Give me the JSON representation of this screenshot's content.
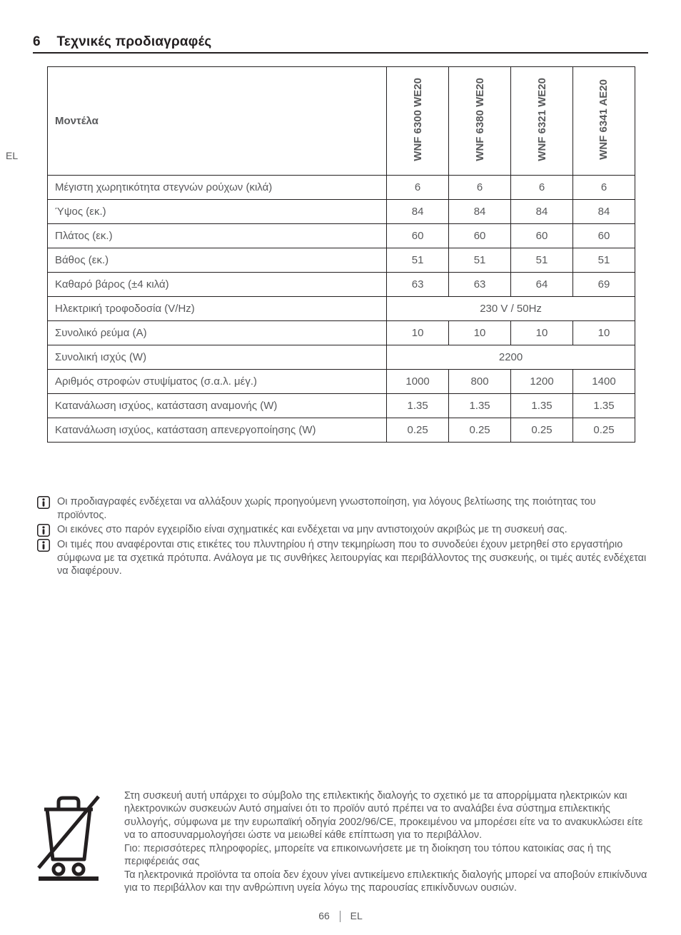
{
  "heading": {
    "number": "6",
    "title": "Τεχνικές προδιαγραφές"
  },
  "lang_side": "EL",
  "table": {
    "row_header_label": "Μοντέλα",
    "models": [
      "WNF 6300 WE20",
      "WNF 6380 WE20",
      "WNF 6321 WE20",
      "WNF 6341 AE20"
    ],
    "rows": [
      {
        "label": "Μέγιστη χωρητικότητα στεγνών ρούχων (κιλά)",
        "values": [
          "6",
          "6",
          "6",
          "6"
        ]
      },
      {
        "label": "Ύψος (εκ.)",
        "values": [
          "84",
          "84",
          "84",
          "84"
        ]
      },
      {
        "label": "Πλάτος (εκ.)",
        "values": [
          "60",
          "60",
          "60",
          "60"
        ]
      },
      {
        "label": "Βάθος (εκ.)",
        "values": [
          "51",
          "51",
          "51",
          "51"
        ]
      },
      {
        "label": "Καθαρό βάρος (±4 κιλά)",
        "values": [
          "63",
          "63",
          "64",
          "69"
        ]
      },
      {
        "label": "Ηλεκτρική τροφοδοσία (V/Hz)",
        "merged": "230 V / 50Hz"
      },
      {
        "label": "Συνολικό ρεύμα (A)",
        "values": [
          "10",
          "10",
          "10",
          "10"
        ]
      },
      {
        "label": "Συνολική ισχύς (W)",
        "merged": "2200"
      },
      {
        "label": "Αριθμός στροφών στυψίματος (σ.α.λ. μέγ.)",
        "values": [
          "1000",
          "800",
          "1200",
          "1400"
        ]
      },
      {
        "label": "Κατανάλωση ισχύος, κατάσταση αναμονής (W)",
        "values": [
          "1.35",
          "1.35",
          "1.35",
          "1.35"
        ]
      },
      {
        "label": "Κατανάλωση ισχύος, κατάσταση απενεργοποίησης (W)",
        "values": [
          "0.25",
          "0.25",
          "0.25",
          "0.25"
        ]
      }
    ]
  },
  "notes": [
    "Οι προδιαγραφές ενδέχεται να αλλάξουν χωρίς προηγούμενη γνωστοποίηση, για λόγους βελτίωσης της ποιότητας του προϊόντος.",
    "Οι εικόνες στο παρόν εγχειρίδιο είναι σχηματικές και ενδέχεται να μην αντιστοιχούν ακριβώς με τη συσκευή σας.",
    "Οι τιμές που αναφέρονται στις ετικέτες του πλυντηρίου ή στην τεκμηρίωση που το συνοδεύει έχουν μετρηθεί στο εργαστήριο σύμφωνα με τα σχετικά πρότυπα. Ανάλογα με τις συνθήκες λειτουργίας και περιβάλλοντος της συσκευής, οι τιμές αυτές ενδέχεται να διαφέρουν."
  ],
  "recycle": {
    "p1": "Στη συσκευή αυτή υπάρχει το σύμβολο της επιλεκτικής διαλογής το σχετικό με τα απορρίμματα ηλεκτρικών και ηλεκτρονικών συσκευών Αυτό σημαίνει ότι το προϊόν αυτό πρέπει να το αναλάβει ένα σύστημα επιλεκτικής συλλογής, σύμφωνα με την ευρωπαϊκή οδηγία 2002/96/CE, προκειμένου να μπορέσει είτε να το ανακυκλώσει είτε να το αποσυναρμολογήσει ώστε να μειωθεί κάθε επίπτωση για το περιβάλλον.",
    "p2": "Γιο: περισσότερες πληροφορίες, μπορείτε να επικοινωνήσετε με τη διοίκηση του τόπου κατοικίας σας ή της περιφέρειάς σας",
    "p3": "Τα ηλεκτρονικά προϊόντα τα οποία δεν έχουν γίνει αντικείμενο επιλεκτικής διαλογής μπορεί να αποβούν επικίνδυνα για το περιβάλλον και την ανθρώπινη υγεία λόγω της παρουσίας επικίνδυνων ουσιών."
  },
  "footer": {
    "page": "66",
    "lang": "EL"
  },
  "colors": {
    "text": "#58595b",
    "rule": "#231f20",
    "background": "#ffffff"
  }
}
